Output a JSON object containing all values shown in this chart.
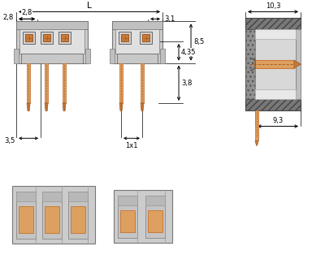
{
  "bg_color": "#ffffff",
  "gray_body": "#cccccc",
  "gray_light": "#e0e0e0",
  "gray_inner": "#d8d8d8",
  "gray_dark": "#aaaaaa",
  "gray_slot": "#b0b0b0",
  "copper_color": "#c87a3a",
  "copper_light": "#dda060",
  "copper_dark": "#a05820",
  "black": "#000000",
  "dark_hatch": "#404040",
  "font_size": 6.5,
  "dims": {
    "L": "L",
    "d_28": "2,8",
    "d_31": "3,1",
    "d_85": "8,5",
    "d_435": "4,35",
    "d_38": "3,8",
    "d_35": "3,5",
    "d_1x1": "1x1",
    "d_103": "10,3",
    "d_93": "9,3"
  }
}
